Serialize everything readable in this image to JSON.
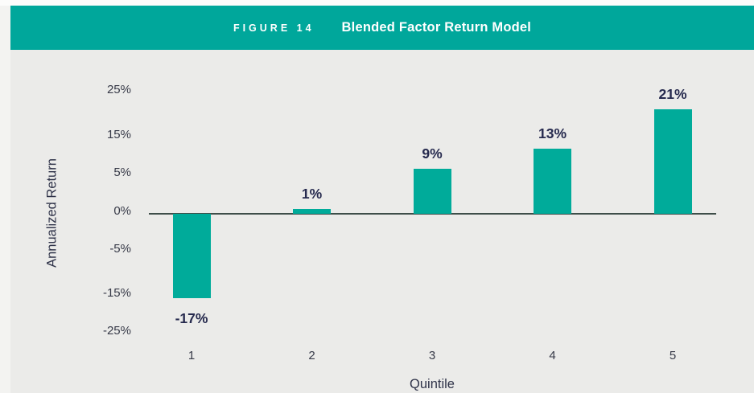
{
  "banner": {
    "figure_label": "FIGURE 14",
    "title": "Blended Factor Return Model",
    "bg_color": "#00a79b",
    "text_color": "#ffffff"
  },
  "chart_data": {
    "type": "bar",
    "categories": [
      "1",
      "2",
      "3",
      "4",
      "5"
    ],
    "values": [
      -17,
      1,
      9,
      13,
      21
    ],
    "value_labels": [
      "-17%",
      "1%",
      "9%",
      "13%",
      "21%"
    ],
    "title": "Blended Factor Return Model",
    "xlabel": "Quintile",
    "ylabel": "Annualized Return",
    "ytick_labels": [
      "25%",
      "15%",
      "5%",
      "0%",
      "-5%",
      "-15%",
      "-25%"
    ],
    "ylim": [
      -25,
      25
    ],
    "grid": "off",
    "legend": "none",
    "bar_color": "#00ab9a",
    "axis_line_color": "#3e4e49",
    "label_color": "#262a4e",
    "tick_color": "#373a48",
    "panel_bg": "#ebebe9"
  }
}
